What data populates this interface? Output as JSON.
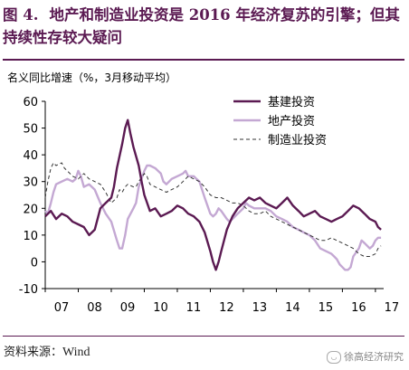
{
  "figure": {
    "number": "图 4.",
    "title": "地产和制造业投资是 2016 年经济复苏的引擎；但其持续性存较大疑问"
  },
  "source": {
    "label": "资料来源：",
    "value": "Wind"
  },
  "watermark": {
    "text": "徐高经济研究",
    "logo_icon": "wechat-bubble-icon"
  },
  "colors": {
    "title": "#5b1a52",
    "series_1": "#5b1a52",
    "series_2": "#c4a8d3",
    "series_3": "#333333"
  },
  "chart_data": {
    "type": "line",
    "ylabel": "名义同比增速（%，3月移动平均）",
    "ylim": [
      -10,
      60
    ],
    "yticks": [
      -10,
      0,
      10,
      20,
      30,
      40,
      50,
      60
    ],
    "xlim": [
      2007.0,
      2017.25
    ],
    "xtick_labels": [
      "07",
      "08",
      "09",
      "10",
      "11",
      "12",
      "13",
      "14",
      "15",
      "16",
      "17"
    ],
    "grid": false,
    "legend_position": "top-right",
    "series": [
      {
        "name": "基建投资",
        "style": "solid-dark",
        "points": [
          [
            2007.0,
            17
          ],
          [
            2007.17,
            19
          ],
          [
            2007.33,
            16
          ],
          [
            2007.5,
            18
          ],
          [
            2007.67,
            17
          ],
          [
            2007.83,
            15
          ],
          [
            2008.0,
            14
          ],
          [
            2008.17,
            13
          ],
          [
            2008.33,
            10
          ],
          [
            2008.5,
            12
          ],
          [
            2008.67,
            20
          ],
          [
            2008.83,
            22
          ],
          [
            2009.0,
            24
          ],
          [
            2009.08,
            28
          ],
          [
            2009.17,
            35
          ],
          [
            2009.33,
            44
          ],
          [
            2009.42,
            50
          ],
          [
            2009.5,
            53
          ],
          [
            2009.58,
            48
          ],
          [
            2009.67,
            43
          ],
          [
            2009.83,
            36
          ],
          [
            2009.92,
            30
          ],
          [
            2010.0,
            25
          ],
          [
            2010.17,
            19
          ],
          [
            2010.33,
            20
          ],
          [
            2010.5,
            17
          ],
          [
            2010.67,
            18
          ],
          [
            2010.83,
            19
          ],
          [
            2011.0,
            21
          ],
          [
            2011.17,
            20
          ],
          [
            2011.33,
            18
          ],
          [
            2011.5,
            17
          ],
          [
            2011.67,
            15
          ],
          [
            2011.83,
            11
          ],
          [
            2012.0,
            4
          ],
          [
            2012.08,
            0
          ],
          [
            2012.17,
            -3
          ],
          [
            2012.25,
            0
          ],
          [
            2012.33,
            4
          ],
          [
            2012.5,
            12
          ],
          [
            2012.67,
            17
          ],
          [
            2012.83,
            20
          ],
          [
            2013.0,
            22
          ],
          [
            2013.17,
            24
          ],
          [
            2013.33,
            23
          ],
          [
            2013.5,
            24
          ],
          [
            2013.67,
            22
          ],
          [
            2013.83,
            21
          ],
          [
            2014.0,
            20
          ],
          [
            2014.17,
            22
          ],
          [
            2014.33,
            24
          ],
          [
            2014.5,
            21
          ],
          [
            2014.67,
            19
          ],
          [
            2014.83,
            17
          ],
          [
            2015.0,
            18
          ],
          [
            2015.17,
            19
          ],
          [
            2015.33,
            17
          ],
          [
            2015.5,
            16
          ],
          [
            2015.67,
            15
          ],
          [
            2015.83,
            16
          ],
          [
            2016.0,
            17
          ],
          [
            2016.17,
            19
          ],
          [
            2016.33,
            21
          ],
          [
            2016.5,
            20
          ],
          [
            2016.67,
            18
          ],
          [
            2016.83,
            16
          ],
          [
            2017.0,
            15
          ],
          [
            2017.08,
            13
          ],
          [
            2017.17,
            12
          ]
        ]
      },
      {
        "name": "地产投资",
        "style": "solid-light",
        "points": [
          [
            2007.0,
            19
          ],
          [
            2007.08,
            18
          ],
          [
            2007.17,
            22
          ],
          [
            2007.25,
            26
          ],
          [
            2007.33,
            29
          ],
          [
            2007.5,
            30
          ],
          [
            2007.67,
            31
          ],
          [
            2007.83,
            30
          ],
          [
            2007.92,
            31
          ],
          [
            2008.0,
            34
          ],
          [
            2008.08,
            32
          ],
          [
            2008.17,
            28
          ],
          [
            2008.33,
            29
          ],
          [
            2008.5,
            27
          ],
          [
            2008.67,
            22
          ],
          [
            2008.83,
            18
          ],
          [
            2009.0,
            15
          ],
          [
            2009.17,
            8
          ],
          [
            2009.25,
            5
          ],
          [
            2009.33,
            5
          ],
          [
            2009.42,
            10
          ],
          [
            2009.5,
            16
          ],
          [
            2009.67,
            20
          ],
          [
            2009.75,
            22
          ],
          [
            2009.83,
            28
          ],
          [
            2010.0,
            34
          ],
          [
            2010.08,
            36
          ],
          [
            2010.17,
            36
          ],
          [
            2010.33,
            35
          ],
          [
            2010.5,
            33
          ],
          [
            2010.58,
            30
          ],
          [
            2010.67,
            29
          ],
          [
            2010.83,
            31
          ],
          [
            2011.0,
            32
          ],
          [
            2011.17,
            33
          ],
          [
            2011.25,
            34
          ],
          [
            2011.33,
            32
          ],
          [
            2011.5,
            32
          ],
          [
            2011.58,
            31
          ],
          [
            2011.67,
            30
          ],
          [
            2011.83,
            24
          ],
          [
            2012.0,
            18
          ],
          [
            2012.08,
            17
          ],
          [
            2012.17,
            18
          ],
          [
            2012.25,
            20
          ],
          [
            2012.33,
            19
          ],
          [
            2012.5,
            16
          ],
          [
            2012.58,
            15
          ],
          [
            2012.67,
            16
          ],
          [
            2012.75,
            17
          ],
          [
            2012.83,
            18
          ],
          [
            2013.0,
            20
          ],
          [
            2013.08,
            22
          ],
          [
            2013.17,
            21
          ],
          [
            2013.33,
            20
          ],
          [
            2013.5,
            20
          ],
          [
            2013.67,
            20
          ],
          [
            2013.83,
            19
          ],
          [
            2014.0,
            17
          ],
          [
            2014.17,
            16
          ],
          [
            2014.33,
            15
          ],
          [
            2014.5,
            13
          ],
          [
            2014.67,
            12
          ],
          [
            2014.83,
            11
          ],
          [
            2015.0,
            10
          ],
          [
            2015.17,
            8
          ],
          [
            2015.33,
            5
          ],
          [
            2015.5,
            4
          ],
          [
            2015.67,
            3
          ],
          [
            2015.75,
            2
          ],
          [
            2015.83,
            1
          ],
          [
            2015.92,
            -1
          ],
          [
            2016.0,
            -2
          ],
          [
            2016.08,
            -3
          ],
          [
            2016.17,
            -3
          ],
          [
            2016.25,
            -2
          ],
          [
            2016.33,
            2
          ],
          [
            2016.5,
            5
          ],
          [
            2016.58,
            8
          ],
          [
            2016.67,
            7
          ],
          [
            2016.83,
            5
          ],
          [
            2016.92,
            6
          ],
          [
            2017.0,
            8
          ],
          [
            2017.08,
            9
          ],
          [
            2017.17,
            9
          ]
        ]
      },
      {
        "name": "制造业投资",
        "style": "dashed",
        "points": [
          [
            2007.0,
            24
          ],
          [
            2007.08,
            30
          ],
          [
            2007.17,
            35
          ],
          [
            2007.25,
            37
          ],
          [
            2007.33,
            36
          ],
          [
            2007.5,
            37
          ],
          [
            2007.58,
            35
          ],
          [
            2007.67,
            34
          ],
          [
            2007.83,
            32
          ],
          [
            2008.0,
            31
          ],
          [
            2008.17,
            33
          ],
          [
            2008.33,
            31
          ],
          [
            2008.5,
            30
          ],
          [
            2008.67,
            29
          ],
          [
            2008.83,
            26
          ],
          [
            2009.0,
            22
          ],
          [
            2009.17,
            24
          ],
          [
            2009.25,
            27
          ],
          [
            2009.33,
            26
          ],
          [
            2009.42,
            28
          ],
          [
            2009.5,
            29
          ],
          [
            2009.67,
            28
          ],
          [
            2009.75,
            28
          ],
          [
            2009.83,
            30
          ],
          [
            2010.0,
            33
          ],
          [
            2010.08,
            32
          ],
          [
            2010.17,
            29
          ],
          [
            2010.33,
            28
          ],
          [
            2010.5,
            27
          ],
          [
            2010.67,
            26
          ],
          [
            2010.83,
            27
          ],
          [
            2011.0,
            28
          ],
          [
            2011.17,
            30
          ],
          [
            2011.33,
            32
          ],
          [
            2011.5,
            31
          ],
          [
            2011.67,
            30
          ],
          [
            2011.83,
            28
          ],
          [
            2012.0,
            25
          ],
          [
            2012.17,
            24
          ],
          [
            2012.33,
            24
          ],
          [
            2012.5,
            23
          ],
          [
            2012.67,
            22
          ],
          [
            2012.83,
            22
          ],
          [
            2013.0,
            21
          ],
          [
            2013.17,
            19
          ],
          [
            2013.33,
            18
          ],
          [
            2013.5,
            18
          ],
          [
            2013.67,
            19
          ],
          [
            2013.83,
            17
          ],
          [
            2014.0,
            16
          ],
          [
            2014.17,
            15
          ],
          [
            2014.33,
            14
          ],
          [
            2014.5,
            13
          ],
          [
            2014.67,
            12
          ],
          [
            2014.83,
            11
          ],
          [
            2015.0,
            10
          ],
          [
            2015.17,
            9
          ],
          [
            2015.33,
            8
          ],
          [
            2015.5,
            8
          ],
          [
            2015.67,
            9
          ],
          [
            2015.83,
            8
          ],
          [
            2016.0,
            7
          ],
          [
            2016.17,
            6
          ],
          [
            2016.33,
            5
          ],
          [
            2016.5,
            3
          ],
          [
            2016.67,
            2
          ],
          [
            2016.83,
            2
          ],
          [
            2017.0,
            3
          ],
          [
            2017.08,
            5
          ],
          [
            2017.17,
            6
          ]
        ]
      }
    ]
  }
}
